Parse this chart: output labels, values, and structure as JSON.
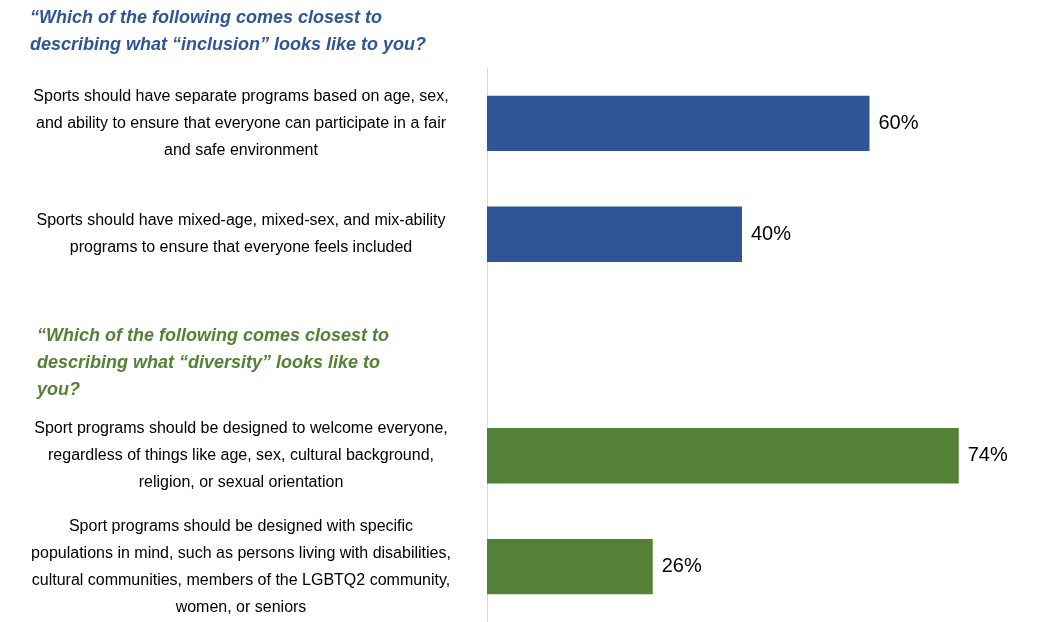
{
  "chart_data": {
    "type": "bar",
    "orientation": "horizontal",
    "title": "“Which of the following comes closest to describing what “inclusion” looks like to you?",
    "categories": [
      "Sports should have separate programs based on age, sex, and ability to ensure that everyone can participate in a fair and safe environment",
      "Sports should have mixed-age, mixed-sex, and mix-ability programs to ensure that everyone feels included",
      null,
      "Sport programs should be designed to welcome everyone, regardless of things like age, sex, cultural background, religion, or sexual orientation",
      "Sport programs should be designed with specific populations in mind, such as persons living with disabilities, cultural communities, members of the LGBTQ2 community, women, or seniors"
    ],
    "series": [
      {
        "color": "#2f5597",
        "values": [
          60,
          40,
          null,
          null,
          null
        ],
        "value_labels": [
          "60%",
          "40%",
          null,
          null,
          null
        ]
      },
      {
        "color": "#538135",
        "values": [
          null,
          null,
          null,
          74,
          26
        ],
        "value_labels": [
          null,
          null,
          null,
          "74%",
          "26%"
        ]
      }
    ],
    "legend": false,
    "annotations": [
      "“Which of the following comes closest to describing what “diversity” looks like to you?"
    ]
  }
}
